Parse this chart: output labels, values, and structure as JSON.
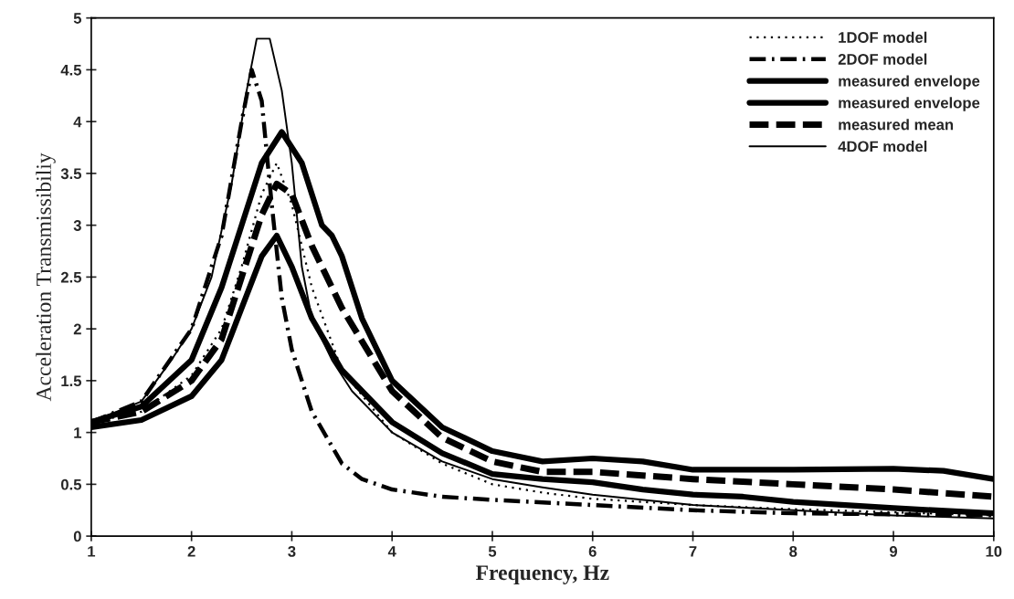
{
  "chart_data": {
    "type": "line",
    "xlabel": "Frequency, Hz",
    "ylabel": "Acceleration Transmissibiliy",
    "xlim": [
      1,
      10
    ],
    "ylim": [
      0,
      5
    ],
    "xticks": [
      1,
      2,
      3,
      4,
      5,
      6,
      7,
      8,
      9,
      10
    ],
    "yticks": [
      0,
      0.5,
      1,
      1.5,
      2,
      2.5,
      3,
      3.5,
      4,
      4.5,
      5
    ],
    "grid": false,
    "legend": "top right",
    "marker": "none",
    "series": [
      {
        "name": "1DOF model",
        "color": "#000000",
        "line_style": "dotted",
        "x": [
          1,
          1.5,
          2,
          2.3,
          2.5,
          2.7,
          2.85,
          3.0,
          3.2,
          3.5,
          4,
          4.5,
          5,
          5.5,
          6,
          7,
          8,
          10
        ],
        "values": [
          1.1,
          1.2,
          1.55,
          2.0,
          2.6,
          3.3,
          3.6,
          3.2,
          2.4,
          1.6,
          1.0,
          0.7,
          0.5,
          0.42,
          0.36,
          0.3,
          0.26,
          0.2
        ]
      },
      {
        "name": "2DOF model",
        "color": "#000000",
        "line_style": "dashed",
        "x": [
          1,
          1.5,
          2,
          2.3,
          2.5,
          2.6,
          2.7,
          2.8,
          2.9,
          3.0,
          3.2,
          3.5,
          3.7,
          4,
          4.5,
          5,
          6,
          7,
          8,
          10
        ],
        "values": [
          1.1,
          1.3,
          2.0,
          2.9,
          4.0,
          4.5,
          4.2,
          3.2,
          2.3,
          1.8,
          1.2,
          0.7,
          0.55,
          0.45,
          0.38,
          0.35,
          0.3,
          0.25,
          0.22,
          0.2
        ]
      },
      {
        "name": "measured envelope",
        "color": "#000000",
        "line_style": "solid",
        "x": [
          1,
          1.5,
          2,
          2.3,
          2.5,
          2.7,
          2.9,
          3.1,
          3.3,
          3.4,
          3.5,
          3.7,
          4,
          4.5,
          5,
          5.5,
          6,
          6.5,
          7,
          7.5,
          8,
          9,
          9.5,
          10
        ],
        "values": [
          1.1,
          1.25,
          1.7,
          2.4,
          3.0,
          3.6,
          3.9,
          3.6,
          3.0,
          2.9,
          2.7,
          2.1,
          1.5,
          1.05,
          0.82,
          0.72,
          0.75,
          0.72,
          0.64,
          0.64,
          0.64,
          0.65,
          0.63,
          0.55
        ]
      },
      {
        "name": "measured envelope",
        "color": "#000000",
        "line_style": "solid",
        "x": [
          1,
          1.5,
          2,
          2.3,
          2.5,
          2.7,
          2.85,
          3.0,
          3.2,
          3.5,
          4,
          4.5,
          5,
          5.5,
          6,
          6.5,
          7,
          7.5,
          8,
          9,
          10
        ],
        "values": [
          1.05,
          1.12,
          1.35,
          1.7,
          2.2,
          2.7,
          2.9,
          2.6,
          2.1,
          1.6,
          1.1,
          0.8,
          0.6,
          0.55,
          0.52,
          0.45,
          0.4,
          0.38,
          0.33,
          0.27,
          0.22
        ]
      },
      {
        "name": "measured mean",
        "color": "#000000",
        "line_style": "dashed",
        "x": [
          1,
          1.5,
          2,
          2.3,
          2.5,
          2.7,
          2.85,
          3.0,
          3.2,
          3.5,
          4,
          4.5,
          5,
          5.5,
          6,
          7,
          8,
          9,
          10
        ],
        "values": [
          1.1,
          1.2,
          1.5,
          1.9,
          2.5,
          3.1,
          3.4,
          3.3,
          2.8,
          2.2,
          1.4,
          0.95,
          0.72,
          0.62,
          0.62,
          0.55,
          0.5,
          0.45,
          0.38
        ]
      },
      {
        "name": "4DOF model",
        "color": "#000000",
        "line_style": "solid",
        "x": [
          1,
          1.5,
          1.8,
          2,
          2.2,
          2.4,
          2.55,
          2.65,
          2.78,
          2.9,
          3.0,
          3.1,
          3.2,
          3.4,
          3.6,
          4,
          4.5,
          5,
          5.5,
          6,
          7,
          8,
          9,
          10
        ],
        "values": [
          1.1,
          1.3,
          1.7,
          2.0,
          2.5,
          3.4,
          4.3,
          4.8,
          4.8,
          4.3,
          3.6,
          2.6,
          2.1,
          1.7,
          1.4,
          1.0,
          0.72,
          0.55,
          0.47,
          0.4,
          0.3,
          0.25,
          0.2,
          0.17
        ]
      }
    ]
  }
}
